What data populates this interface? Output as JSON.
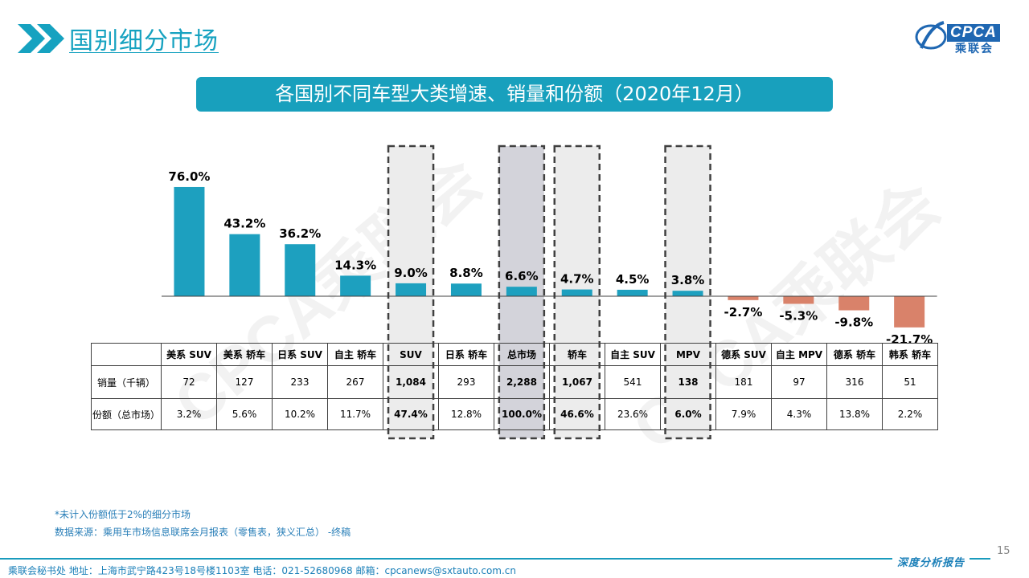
{
  "header": {
    "page_title": "国别细分市场",
    "banner": "各国别不同车型大类增速、销量和份额（2020年12月）",
    "logo_text": "CPCA",
    "logo_sub": "乘联会"
  },
  "chart_data": {
    "type": "bar",
    "categories": [
      "美系 SUV",
      "美系 轿车",
      "日系 SUV",
      "自主 轿车",
      "SUV",
      "日系 轿车",
      "总市场",
      "轿车",
      "自主 SUV",
      "MPV",
      "德系 SUV",
      "自主 MPV",
      "德系 轿车",
      "韩系 轿车"
    ],
    "values": [
      76.0,
      43.2,
      36.2,
      14.3,
      9.0,
      8.8,
      6.6,
      4.7,
      4.5,
      3.8,
      -2.7,
      -5.3,
      -9.8,
      -21.7
    ],
    "value_labels": [
      "76.0%",
      "43.2%",
      "36.2%",
      "14.3%",
      "9.0%",
      "8.8%",
      "6.6%",
      "4.7%",
      "4.5%",
      "3.8%",
      "-2.7%",
      "-5.3%",
      "-9.8%",
      "-21.7%"
    ],
    "highlighted": [
      "SUV",
      "总市场",
      "轿车",
      "MPV"
    ],
    "colors": {
      "positive": "#1da0bf",
      "negative": "#d9826a",
      "highlight_fill": "#ececec",
      "total_fill": "#d3d3da",
      "box_border": "#404040"
    },
    "title": "",
    "xlabel": "",
    "ylabel": ""
  },
  "table": {
    "row_labels": [
      "销量（千辆）",
      "份额（总市场）"
    ],
    "sales": [
      "72",
      "127",
      "233",
      "267",
      "1,084",
      "293",
      "2,288",
      "1,067",
      "541",
      "138",
      "181",
      "97",
      "316",
      "51"
    ],
    "share": [
      "3.2%",
      "5.6%",
      "10.2%",
      "11.7%",
      "47.4%",
      "12.8%",
      "100.0%",
      "46.6%",
      "23.6%",
      "6.0%",
      "7.9%",
      "4.3%",
      "13.8%",
      "2.2%"
    ]
  },
  "watermark": "CPCA乘联会",
  "notes": {
    "line1": "*未计入份额低于2%的细分市场",
    "line2": "数据来源：乘用车市场信息联席会月报表（零售表，狭义汇总）   -终稿"
  },
  "footer": {
    "address": "乘联会秘书处    地址：上海市武宁路423号18号楼1103室    电话：021-52680968     邮箱：cpcanews@sxtauto.com.cn",
    "right": "深度分析报告",
    "page_number": "15"
  }
}
